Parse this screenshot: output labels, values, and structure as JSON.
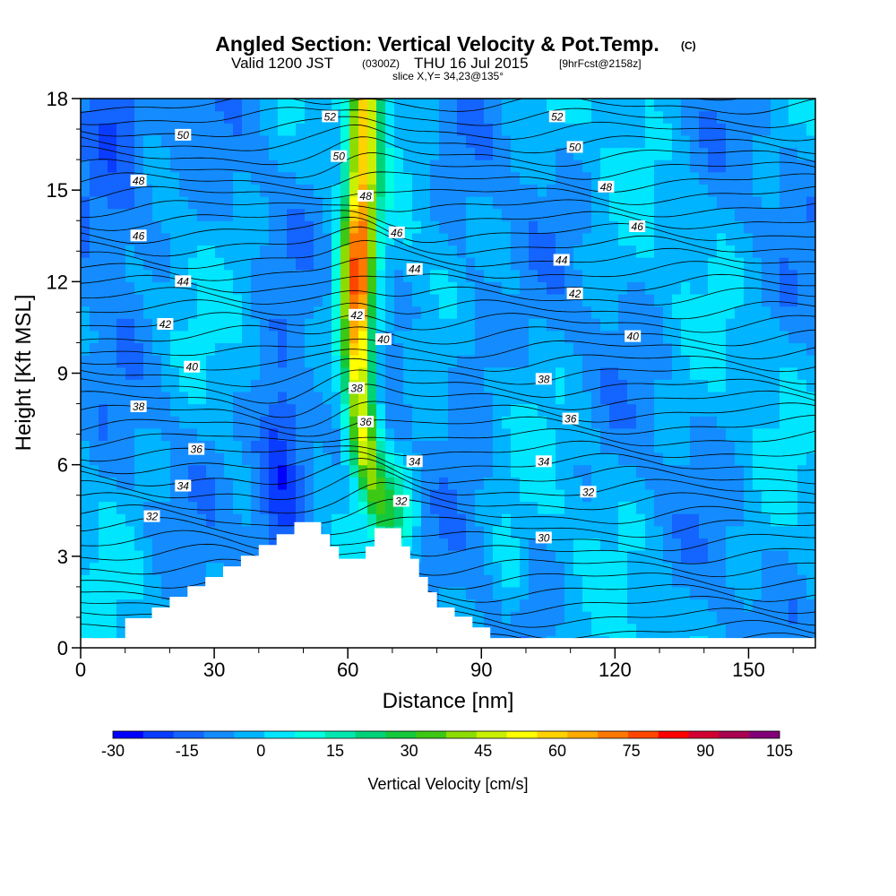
{
  "title": {
    "main": "Angled Section: Vertical Velocity & Pot.Temp.",
    "copyright": "(C)",
    "valid_prefix": "Valid 1200 JST",
    "utc": "(0300Z)",
    "valid_date": "THU 16 Jul 2015",
    "forecast": "[9hrFcst@2158z]",
    "slice": "slice X,Y= 34,23@135°"
  },
  "chart_data": {
    "type": "heatmap",
    "xlabel": "Distance [nm]",
    "ylabel": "Height [Kft MSL]",
    "xlim": [
      0,
      165
    ],
    "ylim": [
      0,
      18
    ],
    "xticks": [
      0,
      30,
      60,
      90,
      120,
      150
    ],
    "yticks": [
      0,
      3,
      6,
      9,
      12,
      15,
      18
    ],
    "colorbar": {
      "label": "Vertical Velocity [cm/s]",
      "min": -30,
      "max": 105,
      "step": 7.5,
      "tick_labels": [
        "-30",
        "-15",
        "0",
        "15",
        "30",
        "45",
        "60",
        "75",
        "90",
        "105"
      ],
      "colors": [
        "#0000ff",
        "#0a3cff",
        "#1464ff",
        "#148cff",
        "#00b4ff",
        "#00e6ff",
        "#00ffe0",
        "#00e8b0",
        "#00d278",
        "#14c83c",
        "#3cc814",
        "#8cdc00",
        "#c8f000",
        "#ffff00",
        "#ffd200",
        "#ffaa00",
        "#ff7800",
        "#ff4600",
        "#ff0000",
        "#d20032",
        "#aa0050",
        "#820078"
      ]
    },
    "updraft_core": {
      "x_center": [
        64,
        63,
        62,
        62,
        63,
        64,
        67,
        70
      ],
      "height": [
        18,
        15,
        12,
        10,
        8,
        6,
        4.5,
        3.5
      ],
      "peak": 100
    },
    "downdrafts": [
      {
        "x": 45,
        "height": 6,
        "value": -30
      },
      {
        "x": 8,
        "height": 16,
        "value": -20
      },
      {
        "x": 88,
        "height": 10,
        "value": -10
      }
    ],
    "terrain": {
      "x": [
        0,
        10,
        16,
        20,
        24,
        28,
        32,
        36,
        40,
        44,
        48,
        52,
        54,
        56,
        58,
        60,
        62,
        64,
        66,
        68,
        70,
        72,
        74,
        76,
        78,
        80,
        84,
        88,
        92,
        96,
        100,
        165
      ],
      "height": [
        0,
        0.65,
        1,
        1.35,
        1.7,
        2,
        2.35,
        2.7,
        3.05,
        3.4,
        3.8,
        3.8,
        3.4,
        3.0,
        2.6,
        2.6,
        2.6,
        3.0,
        3.6,
        3.6,
        3.6,
        3.0,
        2.6,
        2.0,
        1.5,
        1.0,
        0.7,
        0.35,
        0,
        0,
        0,
        0
      ]
    },
    "theta_labels": [
      {
        "text": "52",
        "x": 56,
        "h": 17.4
      },
      {
        "text": "50",
        "x": 23,
        "h": 16.8
      },
      {
        "text": "50",
        "x": 58,
        "h": 16.1
      },
      {
        "text": "48",
        "x": 13,
        "h": 15.3
      },
      {
        "text": "48",
        "x": 64,
        "h": 14.8
      },
      {
        "text": "46",
        "x": 13,
        "h": 13.5
      },
      {
        "text": "46",
        "x": 71,
        "h": 13.6
      },
      {
        "text": "44",
        "x": 23,
        "h": 12.0
      },
      {
        "text": "44",
        "x": 75,
        "h": 12.4
      },
      {
        "text": "42",
        "x": 19,
        "h": 10.6
      },
      {
        "text": "42",
        "x": 62,
        "h": 10.9
      },
      {
        "text": "40",
        "x": 25,
        "h": 9.2
      },
      {
        "text": "40",
        "x": 68,
        "h": 10.1
      },
      {
        "text": "38",
        "x": 13,
        "h": 7.9
      },
      {
        "text": "38",
        "x": 62,
        "h": 8.5
      },
      {
        "text": "36",
        "x": 26,
        "h": 6.5
      },
      {
        "text": "36",
        "x": 64,
        "h": 7.4
      },
      {
        "text": "34",
        "x": 23,
        "h": 5.3
      },
      {
        "text": "34",
        "x": 75,
        "h": 6.1
      },
      {
        "text": "32",
        "x": 16,
        "h": 4.3
      },
      {
        "text": "32",
        "x": 72,
        "h": 4.8
      },
      {
        "text": "52",
        "x": 107,
        "h": 17.4
      },
      {
        "text": "50",
        "x": 111,
        "h": 16.4
      },
      {
        "text": "48",
        "x": 118,
        "h": 15.1
      },
      {
        "text": "46",
        "x": 125,
        "h": 13.8
      },
      {
        "text": "44",
        "x": 108,
        "h": 12.7
      },
      {
        "text": "42",
        "x": 111,
        "h": 11.6
      },
      {
        "text": "40",
        "x": 124,
        "h": 10.2
      },
      {
        "text": "38",
        "x": 104,
        "h": 8.8
      },
      {
        "text": "36",
        "x": 110,
        "h": 7.5
      },
      {
        "text": "34",
        "x": 104,
        "h": 6.1
      },
      {
        "text": "32",
        "x": 114,
        "h": 5.1
      },
      {
        "text": "30",
        "x": 104,
        "h": 3.6
      }
    ]
  }
}
